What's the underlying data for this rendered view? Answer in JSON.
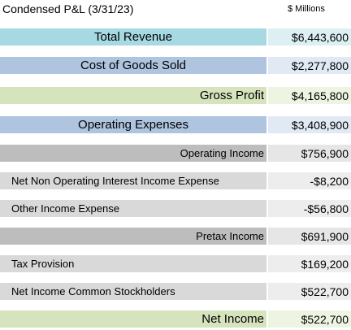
{
  "header": {
    "title": "Condensed P&L (3/31/23)",
    "units": "$ Millions"
  },
  "rows": [
    {
      "label": "Total Revenue",
      "value": "$6,443,600",
      "label_color": "#a6d9e2",
      "value_color": "#dcf0f4"
    },
    {
      "label": "Cost of Goods Sold",
      "value": "$2,277,800",
      "label_color": "#aec4df",
      "value_color": "#e0e9f4"
    },
    {
      "label": "Gross Profit",
      "value": "$4,165,800",
      "label_color": "#d6e4bd",
      "value_color": "#eef4e2"
    },
    {
      "label": "Operating Expenses",
      "value": "$3,408,900",
      "label_color": "#aec4df",
      "value_color": "#e0e9f4"
    },
    {
      "label": "Operating Income",
      "value": "$756,900",
      "label_color": "#bdbdbd",
      "value_color": "#e6e6e6"
    },
    {
      "label": "Net Non Operating Interest Income Expense",
      "value": "-$8,200",
      "label_color": "#d9d9d9",
      "value_color": "#ededed"
    },
    {
      "label": "Other Income Expense",
      "value": "-$56,800",
      "label_color": "#d9d9d9",
      "value_color": "#ededed"
    },
    {
      "label": "Pretax Income",
      "value": "$691,900",
      "label_color": "#bdbdbd",
      "value_color": "#e6e6e6"
    },
    {
      "label": "Tax Provision",
      "value": "$169,200",
      "label_color": "#d9d9d9",
      "value_color": "#ededed"
    },
    {
      "label": "Net Income Common Stockholders",
      "value": "$522,700",
      "label_color": "#d9d9d9",
      "value_color": "#ededed"
    },
    {
      "label": "Net Income",
      "value": "$522,700",
      "label_color": "#d6e4bd",
      "value_color": "#eef4e2"
    }
  ]
}
